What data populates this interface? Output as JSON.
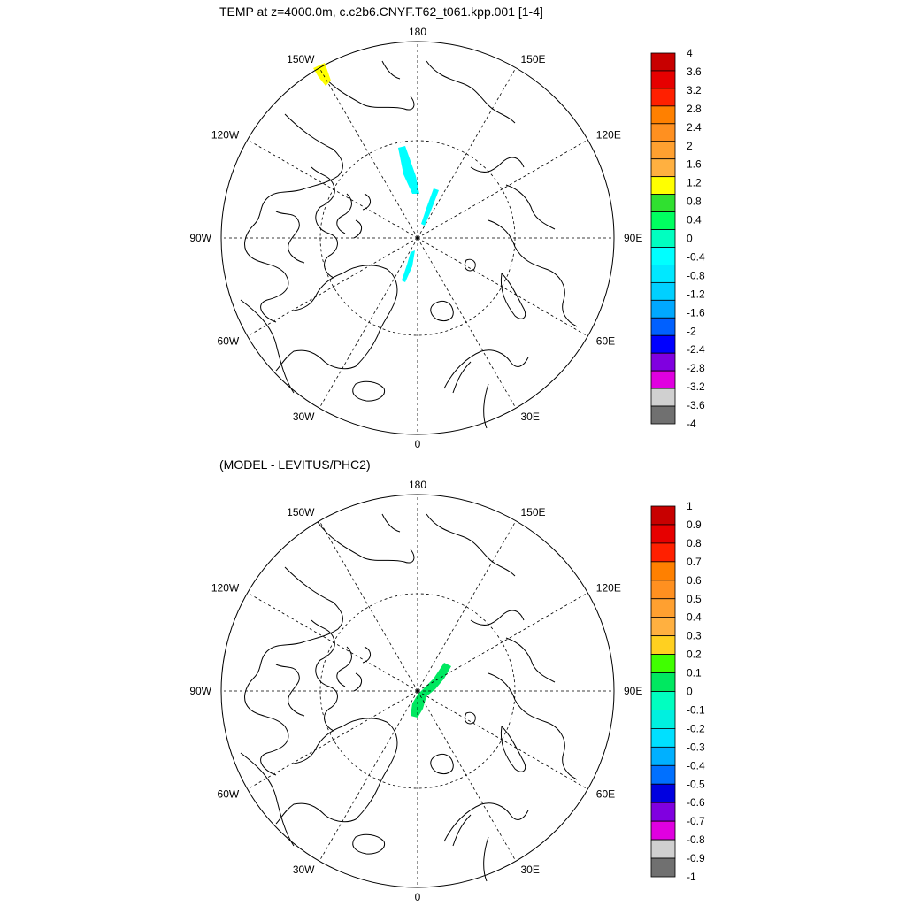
{
  "panels": [
    {
      "id": "top",
      "title": "TEMP at z=4000.0m, c.c2b6.CNYF.T62_t061.kpp.001 [1-4]",
      "lon_labels": [
        "180",
        "150E",
        "120E",
        "90E",
        "60E",
        "30E",
        "0",
        "30W",
        "60W",
        "90W",
        "120W",
        "150W"
      ],
      "colorbar": {
        "labels": [
          "4",
          "3.6",
          "3.2",
          "2.8",
          "2.4",
          "2",
          "1.6",
          "1.2",
          "0.8",
          "0.4",
          "0",
          "-0.4",
          "-0.8",
          "-1.2",
          "-1.6",
          "-2",
          "-2.4",
          "-2.8",
          "-3.2",
          "-3.6",
          "-4"
        ],
        "colors": [
          "#c80000",
          "#e60000",
          "#ff2000",
          "#ff8000",
          "#ff9020",
          "#ffa030",
          "#ffb040",
          "#ffff00",
          "#30e030",
          "#00ff60",
          "#00ffc0",
          "#00ffff",
          "#00e8ff",
          "#00d0ff",
          "#00a8ff",
          "#0060ff",
          "#0000ff",
          "#8000e0",
          "#e000e0",
          "#d0d0d0",
          "#707070"
        ]
      },
      "anomalies": [
        {
          "name": "warm-patch-150w",
          "color": "#ffff00"
        },
        {
          "name": "cold-streak-1",
          "color": "#00ffff"
        },
        {
          "name": "cold-streak-2",
          "color": "#00ffff"
        },
        {
          "name": "cold-streak-3",
          "color": "#00ffff"
        }
      ]
    },
    {
      "id": "bottom",
      "title": "(MODEL - LEVITUS/PHC2)",
      "lon_labels": [
        "180",
        "150E",
        "120E",
        "90E",
        "60E",
        "30E",
        "0",
        "30W",
        "60W",
        "90W",
        "120W",
        "150W"
      ],
      "colorbar": {
        "labels": [
          "1",
          "0.9",
          "0.8",
          "0.7",
          "0.6",
          "0.5",
          "0.4",
          "0.3",
          "0.2",
          "0.1",
          "0",
          "-0.1",
          "-0.2",
          "-0.3",
          "-0.4",
          "-0.5",
          "-0.6",
          "-0.7",
          "-0.8",
          "-0.9",
          "-1"
        ],
        "colors": [
          "#c80000",
          "#e60000",
          "#ff2000",
          "#ff8000",
          "#ff9020",
          "#ffa030",
          "#ffb040",
          "#ffd020",
          "#40ff00",
          "#00e860",
          "#00ffc0",
          "#00f0e0",
          "#00e0ff",
          "#00b0ff",
          "#0070ff",
          "#0000e0",
          "#8000e0",
          "#e000e0",
          "#d0d0d0",
          "#707070"
        ]
      },
      "anomalies": [
        {
          "name": "warm-streak-main",
          "color": "#00e860"
        }
      ]
    }
  ]
}
